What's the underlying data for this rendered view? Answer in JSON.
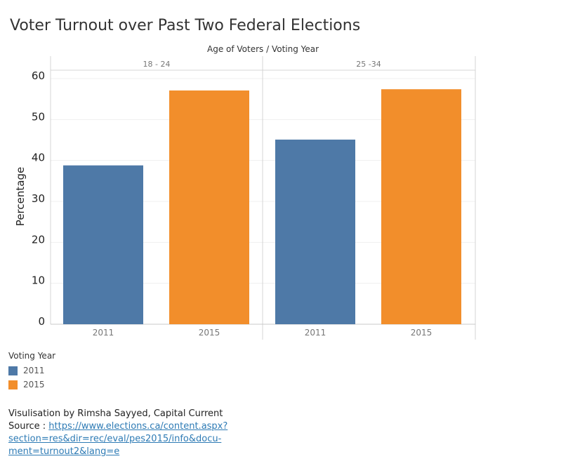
{
  "title": "Voter Turnout over Past Two Federal Elections",
  "header_title": "Age of Voters  /  Voting Year",
  "chart_data": {
    "type": "bar",
    "panels": [
      "18 - 24",
      "25 -34"
    ],
    "categories": [
      "2011",
      "2015"
    ],
    "series": [
      {
        "panel": "18 - 24",
        "values": [
          38.8,
          57.1
        ]
      },
      {
        "panel": "25 -34",
        "values": [
          45.1,
          57.4
        ]
      }
    ],
    "colors": {
      "2011": "#4e79a7",
      "2015": "#f28e2b"
    },
    "ylabel": "Percentage",
    "ylim": [
      0,
      60
    ],
    "yticks": [
      0,
      10,
      20,
      30,
      40,
      50,
      60
    ],
    "grid": true
  },
  "legend": {
    "title": "Voting Year",
    "items": [
      {
        "label": "2011",
        "color": "#4e79a7"
      },
      {
        "label": "2015",
        "color": "#f28e2b"
      }
    ]
  },
  "credit": {
    "line1": "Visulisation by Rimsha Sayyed, Capital Current",
    "source_prefix": "Source : ",
    "source_url": "https://www.elections.ca/content.aspx?section=res&dir=rec/eval/pes2015/info&document=turnout2&lang=e",
    "source_line1": "https://www.elections.ca/content.aspx?section=res&dir=rec/eval/pes2015/info&docu-",
    "source_line2": "ment=turnout2&lang=e"
  }
}
